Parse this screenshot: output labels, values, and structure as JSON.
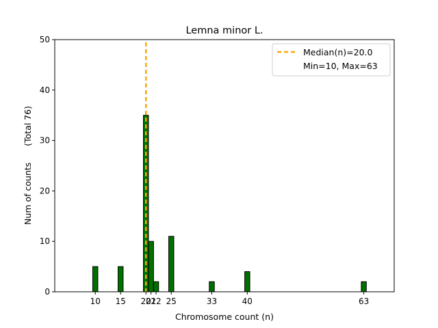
{
  "chart_data": {
    "type": "bar",
    "title": "Lemna minor L.",
    "xlabel": "Chromosome count (n)",
    "ylabel": "Num of counts      (Total 76)",
    "xlim": [
      2,
      69
    ],
    "ylim": [
      0,
      50
    ],
    "yticks": [
      0,
      10,
      20,
      30,
      40,
      50
    ],
    "xticks": [
      10,
      15,
      20,
      21,
      22,
      25,
      33,
      40,
      63
    ],
    "bars": [
      {
        "x": 10,
        "count": 5
      },
      {
        "x": 15,
        "count": 5
      },
      {
        "x": 20,
        "count": 35
      },
      {
        "x": 21,
        "count": 10
      },
      {
        "x": 22,
        "count": 2
      },
      {
        "x": 25,
        "count": 11
      },
      {
        "x": 33,
        "count": 2
      },
      {
        "x": 40,
        "count": 4
      },
      {
        "x": 63,
        "count": 2
      }
    ],
    "median": 20.0,
    "bar_color": "#007000",
    "median_color": "#ffa500",
    "legend": {
      "location": "top-right",
      "entries": [
        "Median(n)=20.0",
        "Min=10, Max=63"
      ]
    }
  }
}
